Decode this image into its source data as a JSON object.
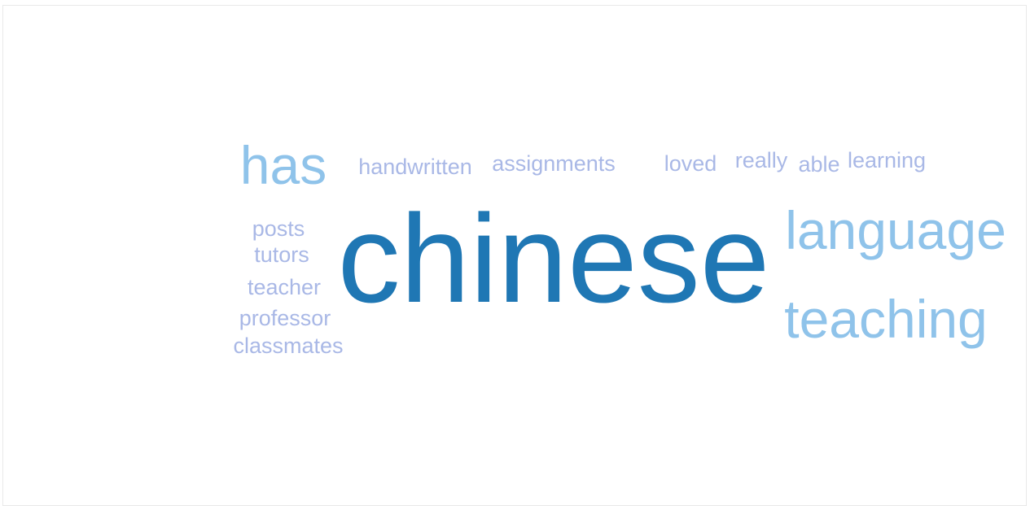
{
  "chart_data": {
    "type": "wordcloud",
    "words": [
      {
        "text": "chinese",
        "weight": 100,
        "color": "#1f77b4"
      },
      {
        "text": "language",
        "weight": 45,
        "color": "#8fc3ea"
      },
      {
        "text": "teaching",
        "weight": 45,
        "color": "#8fc3ea"
      },
      {
        "text": "has",
        "weight": 45,
        "color": "#8fc3ea"
      },
      {
        "text": "handwritten",
        "weight": 20,
        "color": "#a9b8e6"
      },
      {
        "text": "assignments",
        "weight": 20,
        "color": "#a9b8e6"
      },
      {
        "text": "loved",
        "weight": 20,
        "color": "#a9b8e6"
      },
      {
        "text": "really",
        "weight": 20,
        "color": "#a9b8e6"
      },
      {
        "text": "able",
        "weight": 20,
        "color": "#a9b8e6"
      },
      {
        "text": "learning",
        "weight": 20,
        "color": "#a9b8e6"
      },
      {
        "text": "posts",
        "weight": 20,
        "color": "#a9b8e6"
      },
      {
        "text": "tutors",
        "weight": 20,
        "color": "#a9b8e6"
      },
      {
        "text": "teacher",
        "weight": 20,
        "color": "#a9b8e6"
      },
      {
        "text": "professor",
        "weight": 20,
        "color": "#a9b8e6"
      },
      {
        "text": "classmates",
        "weight": 20,
        "color": "#a9b8e6"
      }
    ]
  }
}
